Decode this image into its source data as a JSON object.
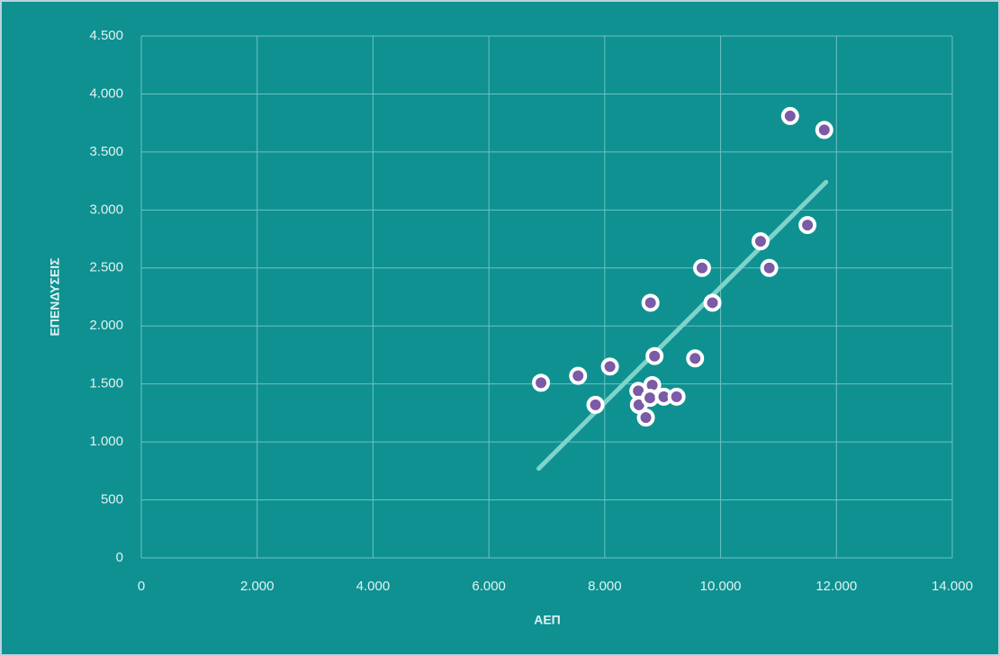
{
  "chart_data": {
    "type": "scatter",
    "x_label": "ΑΕΠ",
    "y_label": "ΕΠΕΝΔΥΣΕΙΣ",
    "series": [
      {
        "color": "#7b5aa6",
        "x": [
          6900,
          7540,
          8090,
          7840,
          8580,
          8590,
          8820,
          8780,
          8710,
          9020,
          9240,
          8860,
          8790,
          9560,
          9680,
          9860,
          10690,
          10840,
          11500,
          11200,
          11790
        ],
        "values": [
          1510,
          1570,
          1650,
          1320,
          1440,
          1320,
          1490,
          1380,
          1210,
          1390,
          1390,
          1740,
          2200,
          1720,
          2500,
          2200,
          2730,
          2500,
          2870,
          3810,
          3690
        ]
      }
    ],
    "trendline": {
      "color": "#7fd3c9",
      "x": [
        6860,
        11820
      ],
      "values": [
        770,
        3240
      ]
    },
    "xlim": [
      0,
      14000
    ],
    "ylim": [
      0,
      4500
    ],
    "xticks": [
      0,
      {
        "value": 2000,
        "label": "2.000"
      },
      {
        "value": 4000,
        "label": "4.000"
      },
      {
        "value": 6000,
        "label": "6.000"
      },
      {
        "value": 8000,
        "label": "8.000"
      },
      {
        "value": 10000,
        "label": "10.000"
      },
      {
        "value": 12000,
        "label": "12.000"
      },
      {
        "value": 14000,
        "label": "14.000"
      }
    ],
    "yticks": [
      0,
      500,
      {
        "value": 1000,
        "label": "1.000"
      },
      {
        "value": 1500,
        "label": "1.500"
      },
      {
        "value": 2000,
        "label": "2.000"
      },
      {
        "value": 2500,
        "label": "2.500"
      },
      {
        "value": 3000,
        "label": "3.000"
      },
      {
        "value": 3500,
        "label": "3.500"
      },
      {
        "value": 4000,
        "label": "4.000"
      },
      {
        "value": 4500,
        "label": "4.500"
      }
    ],
    "grid": true
  }
}
